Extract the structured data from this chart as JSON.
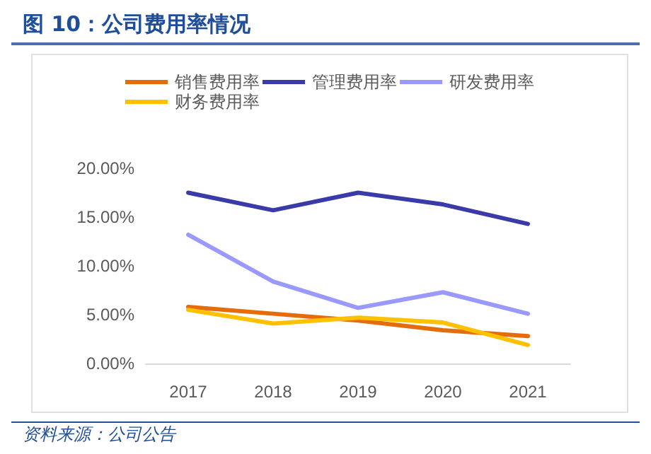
{
  "chart_data": {
    "type": "line",
    "title": "图 10：公司费用率情况",
    "categories": [
      "2017",
      "2018",
      "2019",
      "2020",
      "2021"
    ],
    "series": [
      {
        "name": "销售费用率",
        "color": "#e46c0a",
        "values": [
          5.8,
          5.1,
          4.4,
          3.4,
          2.8
        ]
      },
      {
        "name": "管理费用率",
        "color": "#3a3aa8",
        "values": [
          17.5,
          15.7,
          17.5,
          16.3,
          14.3
        ]
      },
      {
        "name": "研发费用率",
        "color": "#9999ff",
        "values": [
          13.2,
          8.4,
          5.7,
          7.3,
          5.1
        ]
      },
      {
        "name": "财务费用率",
        "color": "#ffc000",
        "values": [
          5.5,
          4.1,
          4.7,
          4.2,
          1.9
        ]
      }
    ],
    "ylim": [
      0,
      20
    ],
    "yticks": [
      {
        "value": 0,
        "label": "0.00%"
      },
      {
        "value": 5,
        "label": "5.00%"
      },
      {
        "value": 10,
        "label": "10.00%"
      },
      {
        "value": 15,
        "label": "15.00%"
      },
      {
        "value": 20,
        "label": "20.00%"
      }
    ],
    "grid": false,
    "legend": "top",
    "marker": "none",
    "line_style": "solid",
    "annotations": [
      "资料来源：公司公告"
    ]
  }
}
